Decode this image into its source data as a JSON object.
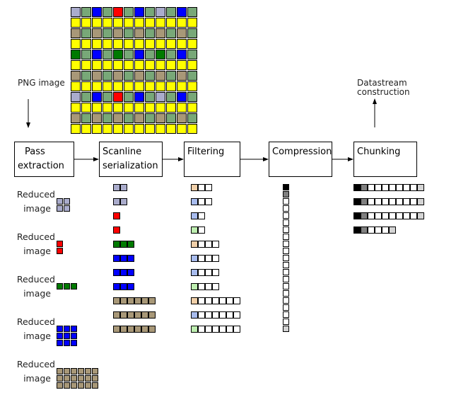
{
  "colors": {
    "lav": "#aaaccc",
    "red": "#ff0000",
    "blue": "#0000ff",
    "dg": "#007a00",
    "tan": "#a89878",
    "mg": "#78a878",
    "yel": "#ffff00",
    "peach": "#f0cfa8",
    "fblue": "#a8bcee",
    "fgreen": "#bdeeb0",
    "white": "#ffffff",
    "black": "#000000",
    "gray": "#808080",
    "lgray": "#d4d4d4"
  },
  "input_label": "PNG image",
  "output_label": "Datastream construction",
  "image_grid": [
    [
      "lav",
      "mg",
      "blue",
      "mg",
      "red",
      "mg",
      "blue",
      "mg",
      "lav",
      "mg",
      "blue",
      "mg"
    ],
    [
      "yel",
      "yel",
      "yel",
      "yel",
      "yel",
      "yel",
      "yel",
      "yel",
      "yel",
      "yel",
      "yel",
      "yel"
    ],
    [
      "tan",
      "mg",
      "tan",
      "mg",
      "tan",
      "mg",
      "tan",
      "mg",
      "tan",
      "mg",
      "tan",
      "mg"
    ],
    [
      "yel",
      "yel",
      "yel",
      "yel",
      "yel",
      "yel",
      "yel",
      "yel",
      "yel",
      "yel",
      "yel",
      "yel"
    ],
    [
      "dg",
      "mg",
      "blue",
      "mg",
      "dg",
      "mg",
      "blue",
      "mg",
      "dg",
      "mg",
      "blue",
      "mg"
    ],
    [
      "yel",
      "yel",
      "yel",
      "yel",
      "yel",
      "yel",
      "yel",
      "yel",
      "yel",
      "yel",
      "yel",
      "yel"
    ],
    [
      "tan",
      "mg",
      "tan",
      "mg",
      "tan",
      "mg",
      "tan",
      "mg",
      "tan",
      "mg",
      "tan",
      "mg"
    ],
    [
      "yel",
      "yel",
      "yel",
      "yel",
      "yel",
      "yel",
      "yel",
      "yel",
      "yel",
      "yel",
      "yel",
      "yel"
    ],
    [
      "lav",
      "mg",
      "blue",
      "mg",
      "red",
      "mg",
      "blue",
      "mg",
      "lav",
      "mg",
      "blue",
      "mg"
    ],
    [
      "yel",
      "yel",
      "yel",
      "yel",
      "yel",
      "yel",
      "yel",
      "yel",
      "yel",
      "yel",
      "yel",
      "yel"
    ],
    [
      "tan",
      "mg",
      "tan",
      "mg",
      "tan",
      "mg",
      "tan",
      "mg",
      "tan",
      "mg",
      "tan",
      "mg"
    ],
    [
      "yel",
      "yel",
      "yel",
      "yel",
      "yel",
      "yel",
      "yel",
      "yel",
      "yel",
      "yel",
      "yel",
      "yel"
    ]
  ],
  "stages": [
    {
      "line1": "Pass",
      "line2": "extraction"
    },
    {
      "line1": "Scanline",
      "line2": "serialization"
    },
    {
      "line1": "Filtering",
      "line2": ""
    },
    {
      "line1": "Compression",
      "line2": ""
    },
    {
      "line1": "Chunking",
      "line2": ""
    }
  ],
  "reduced_images": [
    {
      "line1": "Reduced",
      "line2": "image",
      "cols": 2,
      "rows": 2,
      "color": "lav"
    },
    {
      "line1": "Reduced",
      "line2": "image",
      "cols": 1,
      "rows": 2,
      "color": "red"
    },
    {
      "line1": "Reduced",
      "line2": "image",
      "cols": 3,
      "rows": 1,
      "color": "dg"
    },
    {
      "line1": "Reduced",
      "line2": "image",
      "cols": 3,
      "rows": 3,
      "color": "blue"
    },
    {
      "line1": "Reduced",
      "line2": "image",
      "cols": 6,
      "rows": 3,
      "color": "tan"
    }
  ],
  "scanlines": [
    {
      "n": 2,
      "color": "lav",
      "filter": "peach"
    },
    {
      "n": 2,
      "color": "lav",
      "filter": "fblue"
    },
    {
      "n": 1,
      "color": "red",
      "filter": "fblue"
    },
    {
      "n": 1,
      "color": "red",
      "filter": "fgreen"
    },
    {
      "n": 3,
      "color": "dg",
      "filter": "peach"
    },
    {
      "n": 3,
      "color": "blue",
      "filter": "fblue"
    },
    {
      "n": 3,
      "color": "blue",
      "filter": "fblue"
    },
    {
      "n": 3,
      "color": "blue",
      "filter": "fgreen"
    },
    {
      "n": 6,
      "color": "tan",
      "filter": "peach"
    },
    {
      "n": 6,
      "color": "tan",
      "filter": "fblue"
    },
    {
      "n": 6,
      "color": "tan",
      "filter": "fgreen"
    }
  ],
  "compressed_stream": [
    "black",
    "gray",
    "white",
    "white",
    "white",
    "white",
    "white",
    "white",
    "white",
    "white",
    "white",
    "white",
    "white",
    "white",
    "white",
    "white",
    "white",
    "white",
    "white",
    "white",
    "lgray"
  ],
  "chunks": [
    [
      "black",
      "gray",
      "white",
      "white",
      "white",
      "white",
      "white",
      "white",
      "white",
      "lgray"
    ],
    [
      "black",
      "gray",
      "white",
      "white",
      "white",
      "white",
      "white",
      "white",
      "white",
      "lgray"
    ],
    [
      "black",
      "gray",
      "white",
      "white",
      "white",
      "white",
      "white",
      "white",
      "white",
      "lgray"
    ],
    [
      "black",
      "gray",
      "white",
      "white",
      "white",
      "lgray"
    ]
  ]
}
